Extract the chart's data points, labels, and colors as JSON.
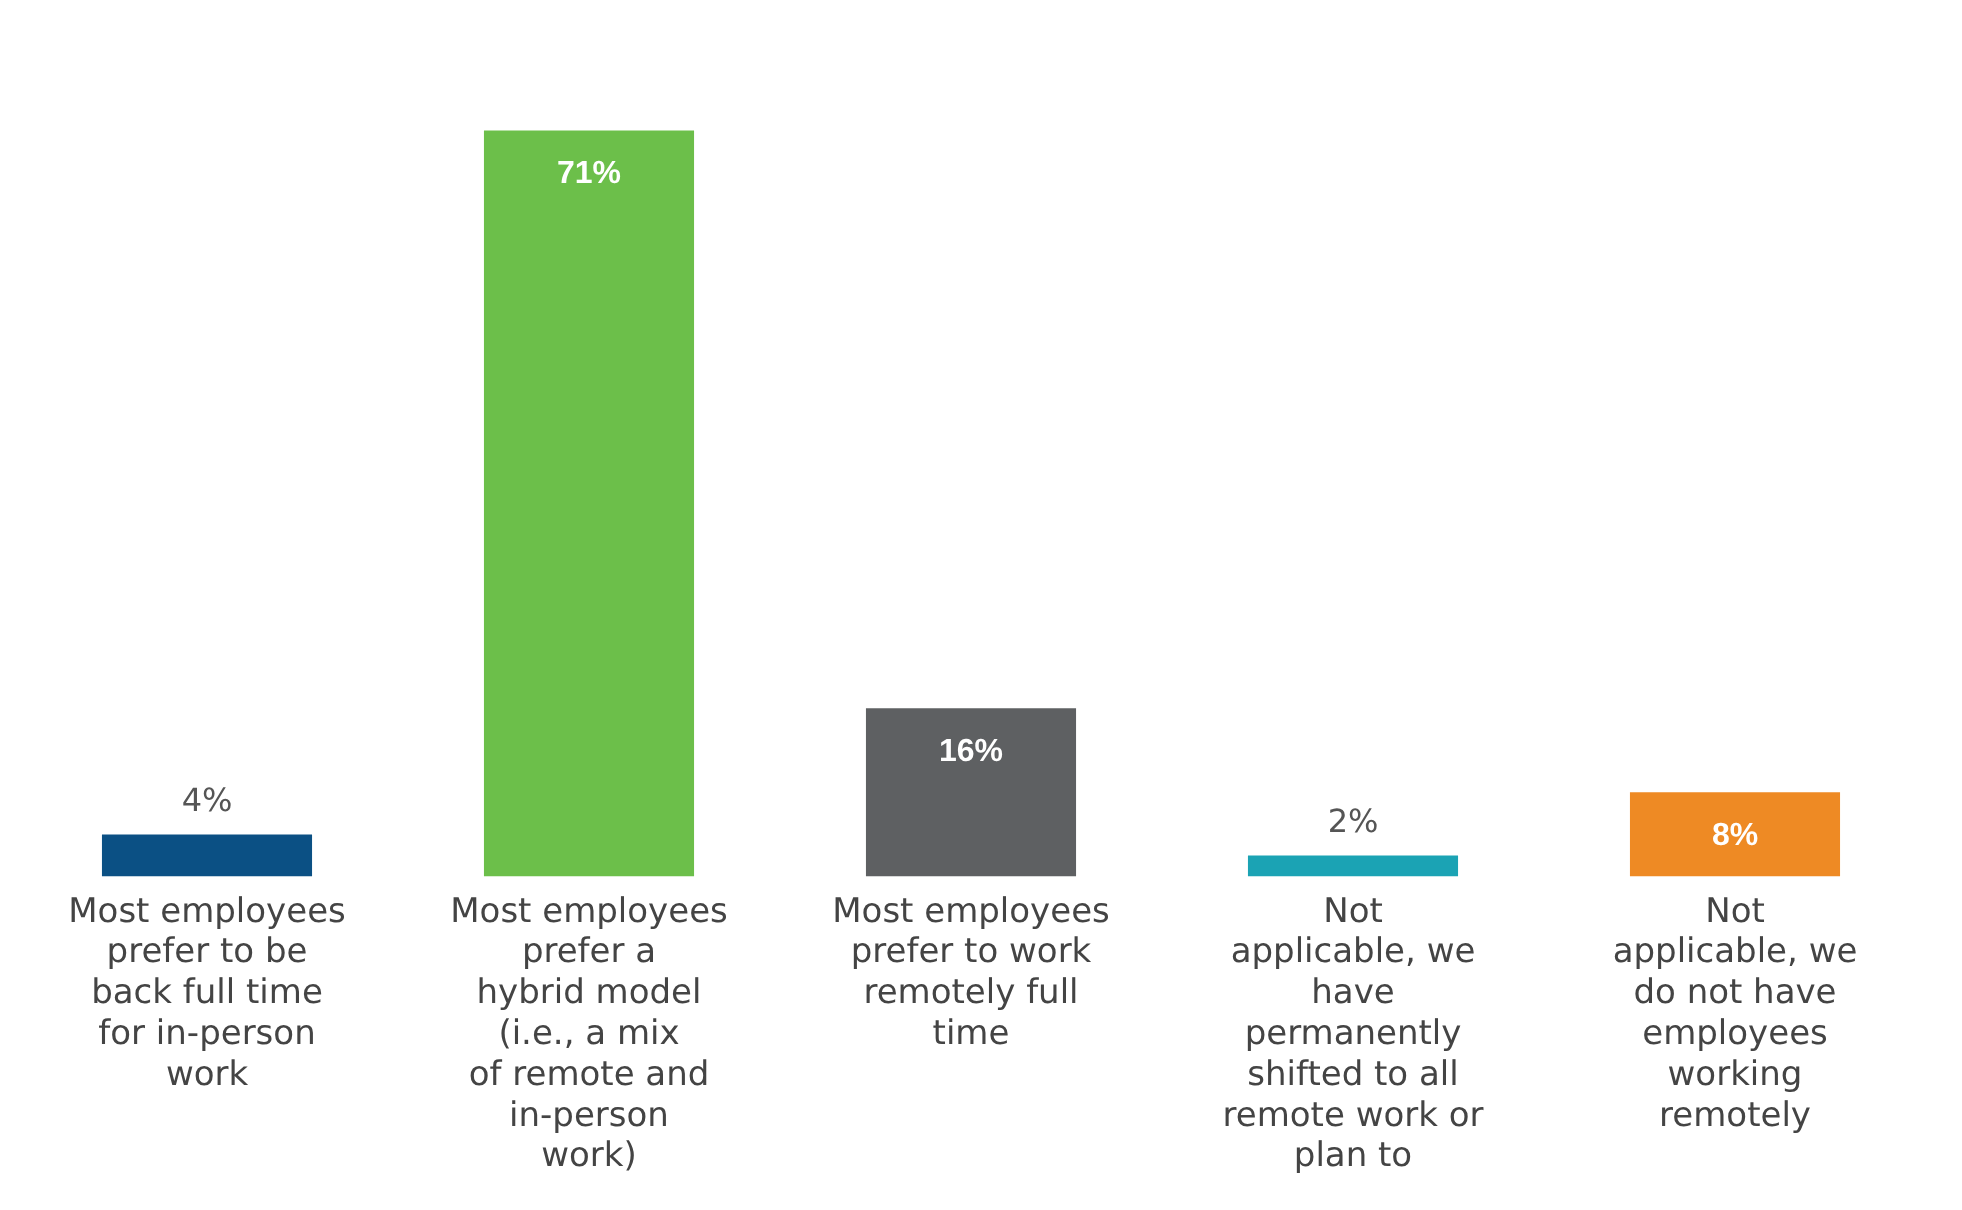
{
  "chart_data": {
    "type": "bar",
    "categories": [
      "Most employees prefer to be back full time for in-person work",
      "Most employees prefer a hybrid model (i.e., a mix of remote and in-person work)",
      "Most employees prefer to work remotely full time",
      "Not applicable, we have permanently shifted to all remote work or plan to",
      "Not applicable, we do not have employees working remotely"
    ],
    "values": [
      4,
      71,
      16,
      2,
      8
    ],
    "colors": [
      "#0b5084",
      "#6cbf4a",
      "#5e6062",
      "#1ba3b4",
      "#ee8a24"
    ],
    "value_labels": [
      "4%",
      "71%",
      "16%",
      "2%",
      "8%"
    ],
    "grid": false,
    "legend": false
  }
}
